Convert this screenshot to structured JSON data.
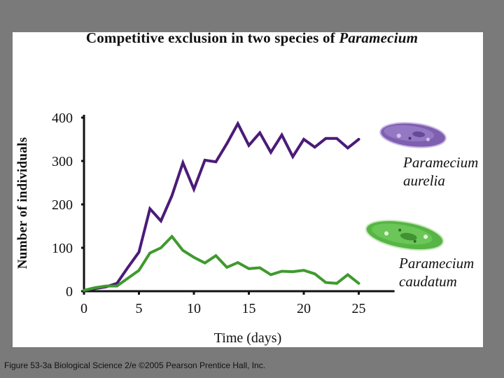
{
  "chart_data": {
    "type": "line",
    "title_prefix": "Competitive exclusion in two species of ",
    "title_italic": "Paramecium",
    "xlabel": "Time (days)",
    "ylabel": "Number of individuals",
    "xlim": [
      0,
      28
    ],
    "ylim": [
      0,
      400
    ],
    "x_ticks": [
      0,
      5,
      10,
      15,
      20,
      25
    ],
    "y_ticks": [
      0,
      100,
      200,
      300,
      400
    ],
    "series": [
      {
        "name": "Paramecium aurelia",
        "label_line1": "Paramecium",
        "label_line2": "aurelia",
        "color": "#4b1b78",
        "x": [
          0,
          1,
          2,
          3,
          4,
          5,
          6,
          7,
          8,
          9,
          10,
          11,
          12,
          13,
          14,
          15,
          16,
          17,
          18,
          19,
          20,
          21,
          22,
          23,
          24,
          25
        ],
        "y": [
          2,
          6,
          10,
          18,
          55,
          90,
          190,
          162,
          220,
          296,
          235,
          302,
          298,
          340,
          386,
          336,
          365,
          320,
          360,
          310,
          350,
          332,
          352,
          352,
          330,
          350
        ]
      },
      {
        "name": "Paramecium caudatum",
        "label_line1": "Paramecium",
        "label_line2": "caudatum",
        "color": "#3f9a2e",
        "x": [
          0,
          1,
          2,
          3,
          4,
          5,
          6,
          7,
          8,
          9,
          10,
          11,
          12,
          13,
          14,
          15,
          16,
          17,
          18,
          19,
          20,
          21,
          22,
          23,
          24,
          25
        ],
        "y": [
          2,
          8,
          12,
          12,
          30,
          48,
          88,
          100,
          126,
          94,
          78,
          65,
          82,
          55,
          66,
          52,
          54,
          38,
          46,
          45,
          48,
          40,
          20,
          18,
          38,
          18
        ]
      }
    ]
  },
  "caption": "Figure 53-3a  Biological Science 2/e  ©2005 Pearson Prentice Hall, Inc.",
  "colors": {
    "aurelia_cell": "#8a6bb5",
    "caudatum_cell": "#5cb84a"
  },
  "icons": [
    "paramecium-aurelia-cell-icon",
    "paramecium-caudatum-cell-icon"
  ]
}
